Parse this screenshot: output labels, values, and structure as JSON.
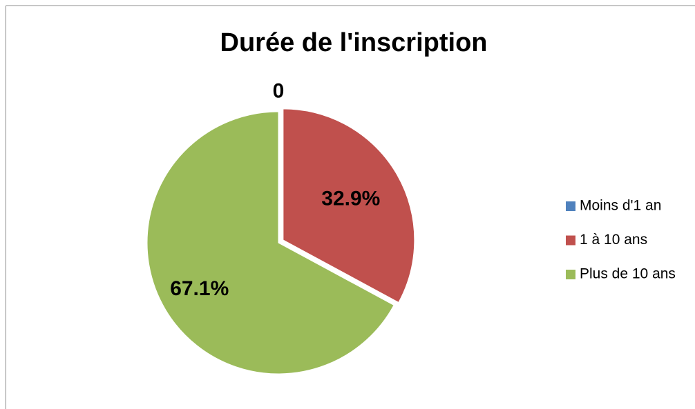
{
  "chart_data": {
    "type": "pie",
    "title": "Durée de l'inscription",
    "categories": [
      "Moins d'1 an",
      "1 à 10 ans",
      "Plus de 10 ans"
    ],
    "values": [
      0,
      32.9,
      67.1
    ],
    "value_labels": [
      "0",
      "32.9%",
      "67.1%"
    ],
    "colors": [
      "#4f81bd",
      "#c0504d",
      "#9bbb59"
    ],
    "legend": "right"
  }
}
